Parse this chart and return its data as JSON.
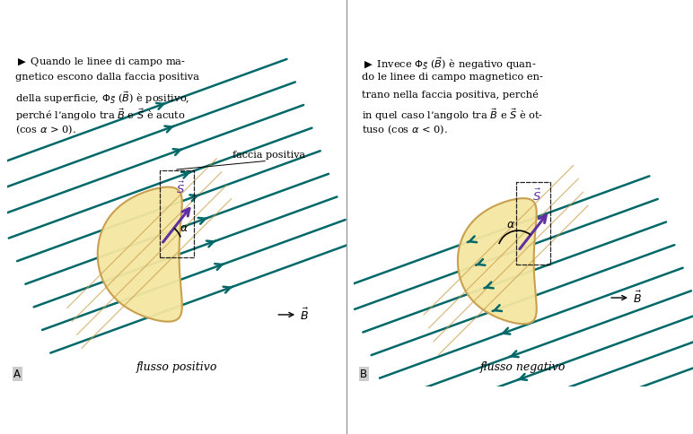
{
  "bg_color": "#ffffff",
  "blob_fill": "#f5e6a0",
  "blob_edge": "#c8a050",
  "vector_S_color": "#6030a0",
  "field_color": "#006868",
  "text_color": "#000000",
  "stripe_color": "#c8a050",
  "panel_A": {
    "label": "A",
    "bottom_label": "flusso positivo",
    "faccia_label": "faccia positiva",
    "field_dir": 1,
    "text_lines": [
      "$\\blacktriangleright$ Quando le linee di campo ma-",
      "gnetico escono dalla faccia positiva",
      "della superficie, $\\Phi_{\\vec{S}}$ ($\\vec{B}$) \\`e positivo,",
      "perch\\`e l\\u2019angolo tra $\\vec{B}$ e $\\vec{S}$ \\`e acuto",
      "(cos $\\alpha$ > 0)."
    ]
  },
  "panel_B": {
    "label": "B",
    "bottom_label": "flusso negativo",
    "field_dir": -1,
    "text_lines": [
      "$\\blacktriangleright$ Invece $\\Phi_{\\vec{S}}$ ($\\vec{B}$) \\`e negativo quan-",
      "do le linee di campo magnetico en-",
      "trano nella faccia positiva, perch\\`e",
      "in quel caso l\\u2019angolo tra $\\vec{B}$ e $\\vec{S}$ \\`e ot-",
      "tuso (cos $\\alpha$ < 0)."
    ]
  }
}
